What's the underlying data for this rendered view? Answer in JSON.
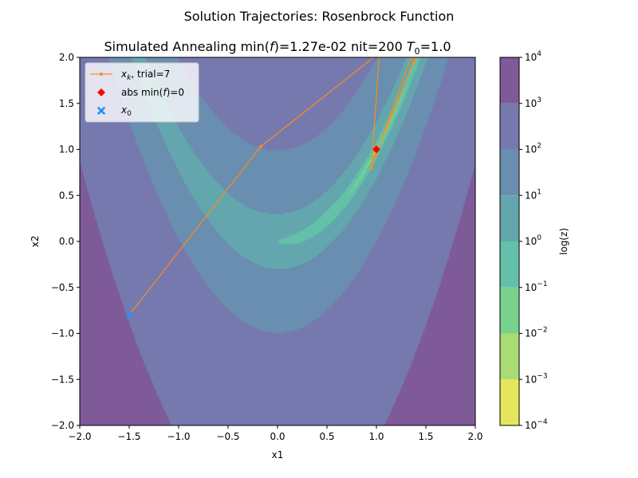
{
  "chart_data": {
    "type": "contour",
    "suptitle": "Solution Trajectories: Rosenbrock Function",
    "title": {
      "prefix": "Simulated Annealing min(",
      "f": "f",
      "mid": ")=1.27e-02 nit=200 ",
      "T": "T",
      "T_sub": "0",
      "suffix": "=1.0"
    },
    "xlabel": "x1",
    "ylabel": "x2",
    "xlim": [
      -2.0,
      2.0
    ],
    "ylim": [
      -2.0,
      2.0
    ],
    "xticks": [
      -2.0,
      -1.5,
      -1.0,
      -0.5,
      0.0,
      0.5,
      1.0,
      1.5,
      2.0
    ],
    "xtick_labels": [
      "−2.0",
      "−1.5",
      "−1.0",
      "−0.5",
      "0.0",
      "0.5",
      "1.0",
      "1.5",
      "2.0"
    ],
    "yticks": [
      -2.0,
      -1.5,
      -1.0,
      -0.5,
      0.0,
      0.5,
      1.0,
      1.5,
      2.0
    ],
    "ytick_labels": [
      "−2.0",
      "−1.5",
      "−1.0",
      "−0.5",
      "0.0",
      "0.5",
      "1.0",
      "1.5",
      "2.0"
    ],
    "contour_levels_log10": [
      -4,
      -3,
      -2,
      -1,
      0,
      1,
      2,
      3,
      4
    ],
    "contour_colors": [
      "#e6e65a",
      "#a9dc73",
      "#78d28d",
      "#62c1a8",
      "#64a6ad",
      "#6a8eaf",
      "#7579ae",
      "#7e5a98"
    ],
    "colorbar": {
      "label": "log(z)",
      "tick_exponents": [
        "−4",
        "−3",
        "−2",
        "−1",
        "0",
        "1",
        "2",
        "3",
        "4"
      ],
      "tick_base": "10"
    },
    "trajectory": {
      "color": "#ff8c1a",
      "points": [
        [
          -1.5,
          -0.8
        ],
        [
          -0.17,
          1.03
        ],
        [
          1.03,
          2.05
        ],
        [
          0.95,
          0.8
        ],
        [
          1.35,
          2.0
        ],
        [
          1.4,
          2.0
        ],
        [
          0.98,
          0.92
        ],
        [
          1.38,
          1.95
        ]
      ]
    },
    "legend": {
      "trajectory": {
        "var": "x",
        "sub": "k",
        "rest": ", trial=7"
      },
      "absmin": {
        "prefix": "abs min(",
        "f": "f",
        "suffix": ")=0",
        "color": "#ff0000"
      },
      "x0": {
        "var": "x",
        "sub": "0",
        "color": "#1e90ff"
      }
    },
    "abs_min_point": [
      1.0,
      1.0
    ],
    "x0_point": [
      -1.5,
      -0.8
    ]
  }
}
